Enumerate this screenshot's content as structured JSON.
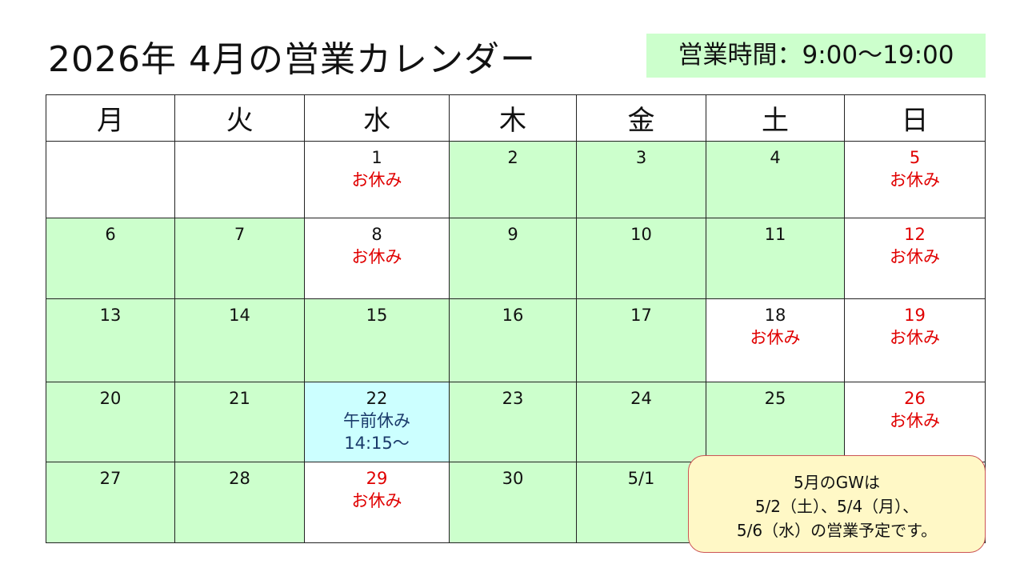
{
  "title": "2026年  4月の営業カレンダー",
  "hours": "営業時間：9:00〜19:00",
  "weekdays": [
    "月",
    "火",
    "水",
    "木",
    "金",
    "土",
    "日"
  ],
  "colors": {
    "open": "#ccffcc",
    "closed": "#ffffff",
    "am_off": "#ccffff",
    "holiday_text": "#e00000",
    "am_off_text": "#1a3a6a",
    "note_bg": "#fff8c6",
    "note_border": "#cc5555"
  },
  "weeks": [
    [
      {
        "day": "",
        "status": "closed"
      },
      {
        "day": "",
        "status": "closed"
      },
      {
        "day": "1",
        "status": "closed",
        "note": "お休み"
      },
      {
        "day": "2",
        "status": "open"
      },
      {
        "day": "3",
        "status": "open"
      },
      {
        "day": "4",
        "status": "open"
      },
      {
        "day": "5",
        "status": "closed",
        "note": "お休み",
        "red_day": true
      }
    ],
    [
      {
        "day": "6",
        "status": "open"
      },
      {
        "day": "7",
        "status": "open"
      },
      {
        "day": "8",
        "status": "closed",
        "note": "お休み"
      },
      {
        "day": "9",
        "status": "open"
      },
      {
        "day": "10",
        "status": "open"
      },
      {
        "day": "11",
        "status": "open"
      },
      {
        "day": "12",
        "status": "closed",
        "note": "お休み",
        "red_day": true
      }
    ],
    [
      {
        "day": "13",
        "status": "open"
      },
      {
        "day": "14",
        "status": "open"
      },
      {
        "day": "15",
        "status": "open"
      },
      {
        "day": "16",
        "status": "open"
      },
      {
        "day": "17",
        "status": "open"
      },
      {
        "day": "18",
        "status": "closed",
        "note": "お休み"
      },
      {
        "day": "19",
        "status": "closed",
        "note": "お休み",
        "red_day": true
      }
    ],
    [
      {
        "day": "20",
        "status": "open"
      },
      {
        "day": "21",
        "status": "open"
      },
      {
        "day": "22",
        "status": "am-off",
        "note": "午前休み",
        "note2": "14:15〜"
      },
      {
        "day": "23",
        "status": "open"
      },
      {
        "day": "24",
        "status": "open"
      },
      {
        "day": "25",
        "status": "open"
      },
      {
        "day": "26",
        "status": "closed",
        "note": "お休み",
        "red_day": true
      }
    ],
    [
      {
        "day": "27",
        "status": "open"
      },
      {
        "day": "28",
        "status": "open"
      },
      {
        "day": "29",
        "status": "closed",
        "note": "お休み",
        "red_day": true
      },
      {
        "day": "30",
        "status": "open"
      },
      {
        "day": "5/1",
        "status": "open"
      },
      {
        "day": "",
        "status": "open"
      },
      {
        "day": "",
        "status": "closed"
      }
    ]
  ],
  "gw_note": {
    "line1": "5月のGWは",
    "line2": "5/2（土）、5/4（月）、",
    "line3": "5/6（水）の営業予定です。"
  }
}
